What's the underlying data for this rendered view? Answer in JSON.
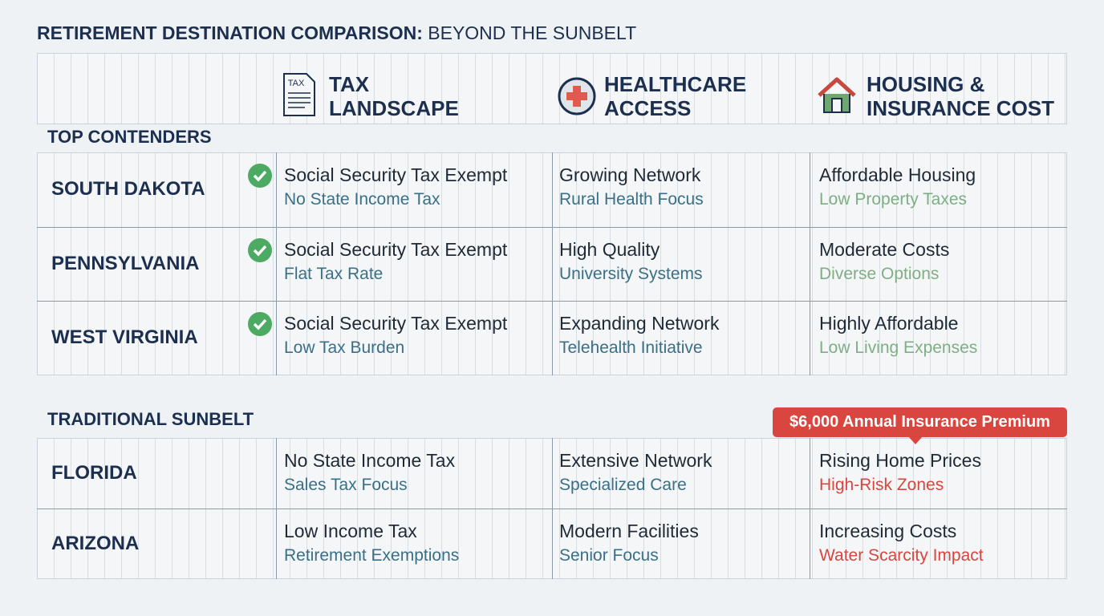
{
  "title": {
    "bold": "RETIREMENT DESTINATION COMPARISON:",
    "rest": "BEYOND THE SUNBELT"
  },
  "columns": [
    {
      "line1": "TAX",
      "line2": "LANDSCAPE",
      "icon_label": "TAX"
    },
    {
      "line1": "HEALTHCARE",
      "line2": "ACCESS"
    },
    {
      "line1": "HOUSING &",
      "line2": "INSURANCE COST"
    }
  ],
  "sections": [
    {
      "label": "TOP CONTENDERS",
      "checkmarks": true,
      "housing_sub_color": "#7fae85",
      "rows": [
        {
          "name": "SOUTH DAKOTA",
          "cells": [
            [
              "Social Security Tax Exempt",
              "No State Income Tax"
            ],
            [
              "Growing Network",
              "Rural Health Focus"
            ],
            [
              "Affordable Housing",
              "Low Property Taxes"
            ]
          ]
        },
        {
          "name": "PENNSYLVANIA",
          "cells": [
            [
              "Social Security Tax Exempt",
              "Flat Tax Rate"
            ],
            [
              "High Quality",
              "University Systems"
            ],
            [
              "Moderate Costs",
              "Diverse Options"
            ]
          ]
        },
        {
          "name": "WEST VIRGINIA",
          "cells": [
            [
              "Social Security Tax Exempt",
              "Low Tax Burden"
            ],
            [
              "Expanding Network",
              "Telehealth Initiative"
            ],
            [
              "Highly Affordable",
              "Low Living Expenses"
            ]
          ]
        }
      ]
    },
    {
      "label": "TRADITIONAL SUNBELT",
      "checkmarks": false,
      "housing_sub_color": "#d9453f",
      "callout": "$6,000 Annual Insurance Premium",
      "rows": [
        {
          "name": "FLORIDA",
          "cells": [
            [
              "No State Income Tax",
              "Sales Tax Focus"
            ],
            [
              "Extensive Network",
              "Specialized Care"
            ],
            [
              "Rising Home Prices",
              "High-Risk Zones"
            ]
          ]
        },
        {
          "name": "ARIZONA",
          "cells": [
            [
              "Low Income Tax",
              "Retirement Exemptions"
            ],
            [
              "Modern Facilities",
              "Senior Focus"
            ],
            [
              "Increasing Costs",
              "Water Scarcity Impact"
            ]
          ]
        }
      ]
    }
  ]
}
